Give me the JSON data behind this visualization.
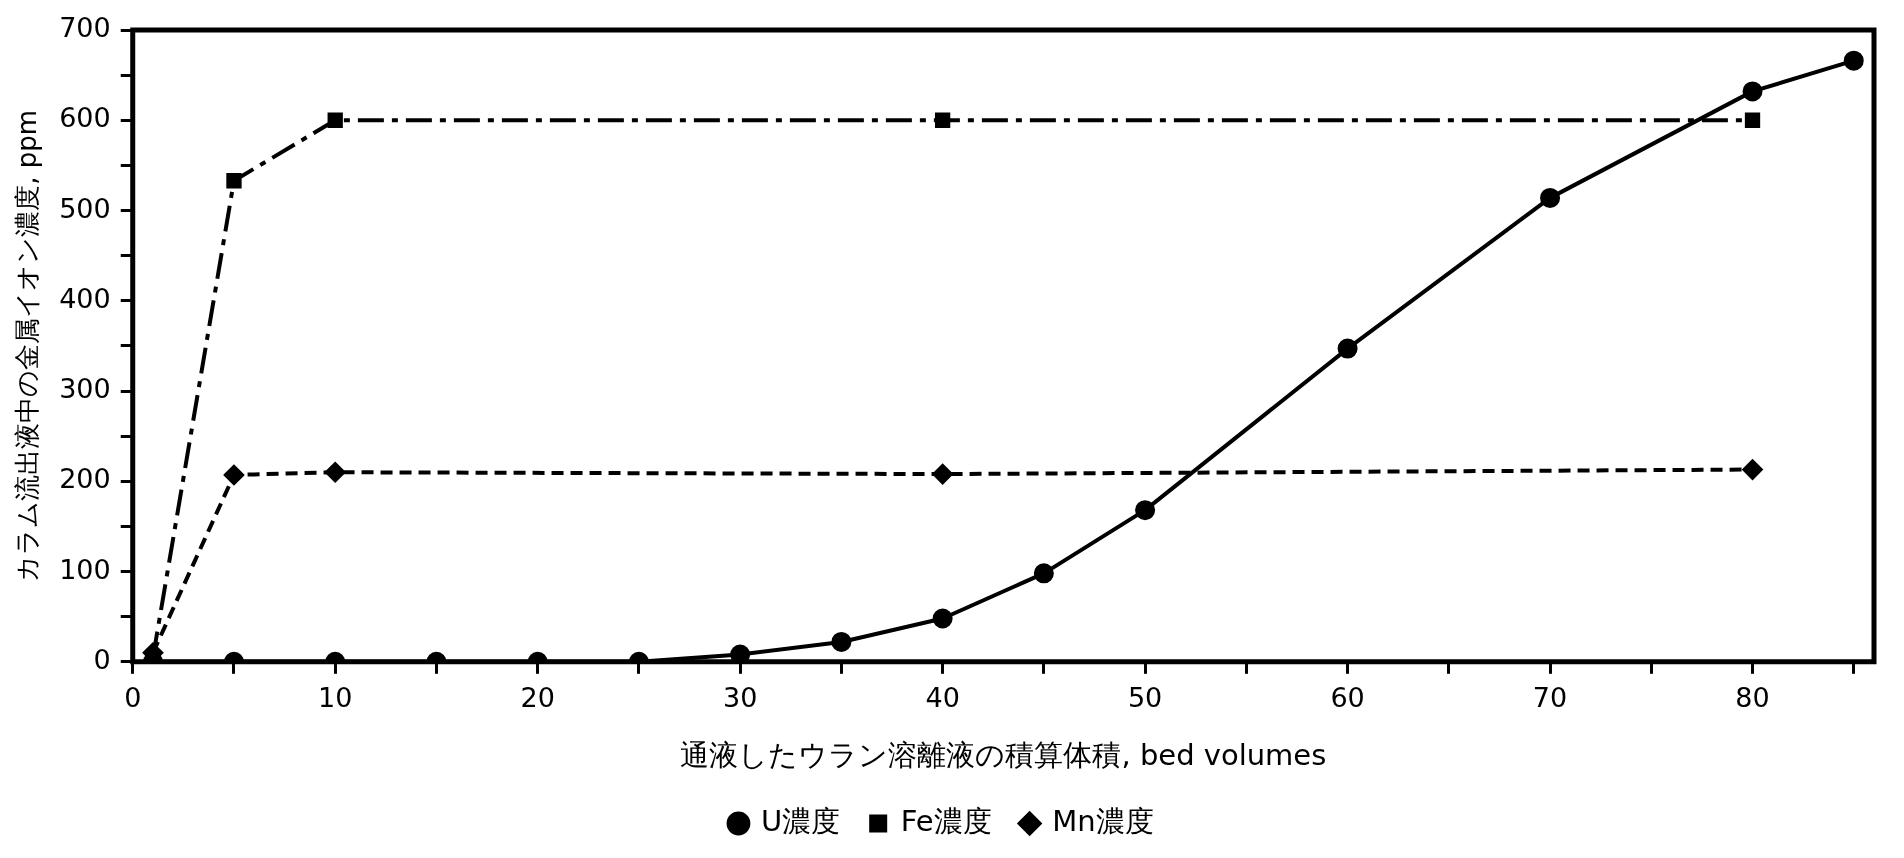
{
  "chart_data": {
    "type": "line",
    "xlabel": "通液したウラン溶離液の積算体積, bed volumes",
    "ylabel": "カラム流出液中の金属イオン濃度, ppm",
    "xlim": [
      0,
      86
    ],
    "xticks": [
      0,
      {
        "value": 5,
        "label": null
      },
      10,
      {
        "value": 15,
        "label": null
      },
      20,
      {
        "value": 25,
        "label": null
      },
      30,
      {
        "value": 35,
        "label": null
      },
      40,
      {
        "value": 45,
        "label": null
      },
      50,
      {
        "value": 55,
        "label": null
      },
      60,
      {
        "value": 65,
        "label": null
      },
      70,
      {
        "value": 75,
        "label": null
      },
      80,
      {
        "value": 85,
        "label": null
      }
    ],
    "ylim": [
      0,
      700
    ],
    "yticks": [
      0,
      {
        "value": 50,
        "label": null
      },
      100,
      {
        "value": 150,
        "label": null
      },
      200,
      {
        "value": 250,
        "label": null
      },
      300,
      {
        "value": 350,
        "label": null
      },
      400,
      {
        "value": 450,
        "label": null
      },
      500,
      {
        "value": 550,
        "label": null
      },
      600,
      {
        "value": 650,
        "label": null
      },
      700
    ],
    "grid": false,
    "legend": "bottom",
    "series": [
      {
        "name": "U濃度",
        "color": "#000000",
        "marker": "circle",
        "line_style": "solid",
        "x": [
          1,
          5,
          10,
          15,
          20,
          25,
          30,
          35,
          40,
          45,
          50,
          60,
          70,
          80,
          85
        ],
        "values": [
          0,
          0,
          0,
          0,
          0,
          0,
          8,
          22,
          48,
          98,
          168,
          347,
          514,
          632,
          666
        ]
      },
      {
        "name": "Fe濃度",
        "color": "#000000",
        "marker": "square",
        "line_style": "dashdot",
        "x": [
          1,
          5,
          10,
          40,
          80
        ],
        "values": [
          5,
          533,
          600,
          600,
          600
        ]
      },
      {
        "name": "Mn濃度",
        "color": "#000000",
        "marker": "diamond",
        "line_style": "dashed",
        "x": [
          1,
          5,
          10,
          40,
          80
        ],
        "values": [
          10,
          207,
          210,
          208,
          213
        ]
      }
    ]
  }
}
